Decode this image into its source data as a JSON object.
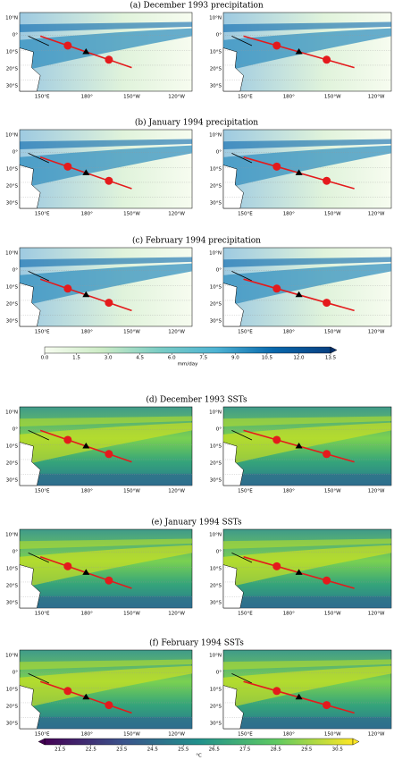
{
  "panels": [
    {
      "title": "(a) December 1993 precipitation",
      "kind": "precip"
    },
    {
      "title": "(b) January 1994 precipitation",
      "kind": "precip"
    },
    {
      "title": "(c) February 1994 precipitation",
      "kind": "precip"
    },
    {
      "title": "(d) December 1993 SSTs",
      "kind": "sst"
    },
    {
      "title": "(e) January 1994 SSTs",
      "kind": "sst"
    },
    {
      "title": "(f) February 1994 SSTs",
      "kind": "sst"
    }
  ],
  "lat_labels": [
    "10°N",
    "0°",
    "10°S",
    "20°S",
    "30°S"
  ],
  "lon_labels": [
    "150°E",
    "180°",
    "150°W",
    "120°W"
  ],
  "colorbars": [
    {
      "kind": "precip",
      "label": "mm/day",
      "ticks": [
        "0.0",
        "1.5",
        "3.0",
        "4.5",
        "6.0",
        "7.5",
        "9.0",
        "10.5",
        "12.0",
        "13.5"
      ]
    },
    {
      "kind": "sst",
      "label": "°C",
      "ticks": [
        "21.5",
        "22.5",
        "23.5",
        "24.5",
        "25.5",
        "26.5",
        "27.5",
        "28.5",
        "29.5",
        "30.5"
      ]
    }
  ]
}
